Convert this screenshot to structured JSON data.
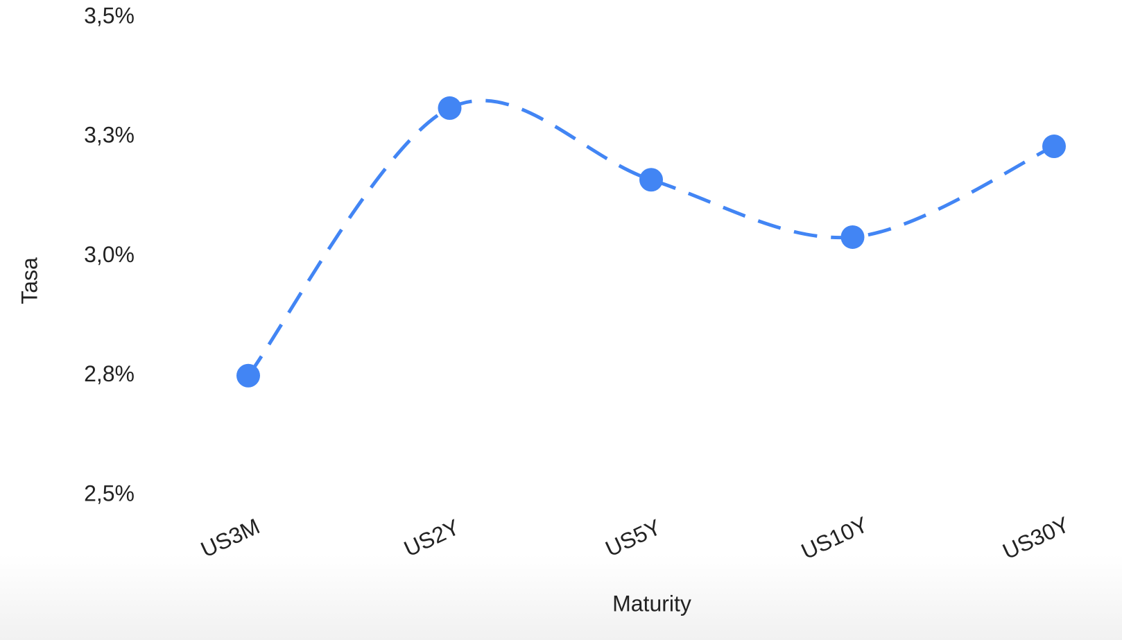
{
  "chart_data": {
    "type": "line",
    "x_label": "Maturity",
    "y_label": "Tasa",
    "categories": [
      "US3M",
      "US2Y",
      "US5Y",
      "US10Y",
      "US30Y"
    ],
    "series": [
      {
        "name": "Tasa",
        "color": "#4285f4",
        "values": [
          2.75,
          3.31,
          3.16,
          3.04,
          3.23
        ]
      }
    ],
    "ylim": [
      2.5,
      3.5
    ],
    "yticks": [
      {
        "value": 2.5,
        "label": "2,5%"
      },
      {
        "value": 2.75,
        "label": "2,8%"
      },
      {
        "value": 3.0,
        "label": "3,0%"
      },
      {
        "value": 3.25,
        "label": "3,3%"
      },
      {
        "value": 3.5,
        "label": "3,5%"
      }
    ],
    "grid": false,
    "dashed": true,
    "smooth": true
  }
}
